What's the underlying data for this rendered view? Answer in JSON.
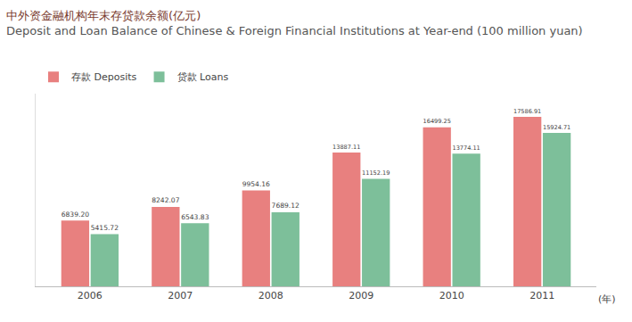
{
  "chart_data": {
    "type": "bar",
    "title": "中外资金融机构年末存贷款余额(亿元)",
    "subtitle": "Deposit and Loan Balance of Chinese & Foreign Financial Institutions at Year-end (100 million yuan)",
    "x_label": "(年)",
    "categories": [
      "2006",
      "2007",
      "2008",
      "2009",
      "2010",
      "2011"
    ],
    "series": [
      {
        "name": "存款 Deposits",
        "color": "#e8807f",
        "values": [
          6839.2,
          8242.07,
          9954.16,
          13887.11,
          16499.25,
          17586.91
        ],
        "value_labels": [
          "6839.20",
          "8242.07",
          "9954.16",
          "13887.11",
          "16499.25",
          "17586.91"
        ]
      },
      {
        "name": "贷款 Loans",
        "color": "#7dbf9a",
        "values": [
          5415.72,
          6543.83,
          7689.12,
          11152.19,
          13774.11,
          15924.71
        ],
        "value_labels": [
          "5415.72",
          "6543.83",
          "7689.12",
          "11152.19",
          "13774.11",
          "15924.71"
        ]
      }
    ],
    "ylim": [
      0,
      20000
    ],
    "grid": false,
    "legend": "top-left",
    "data_labels": true,
    "tick_labels": "x"
  }
}
